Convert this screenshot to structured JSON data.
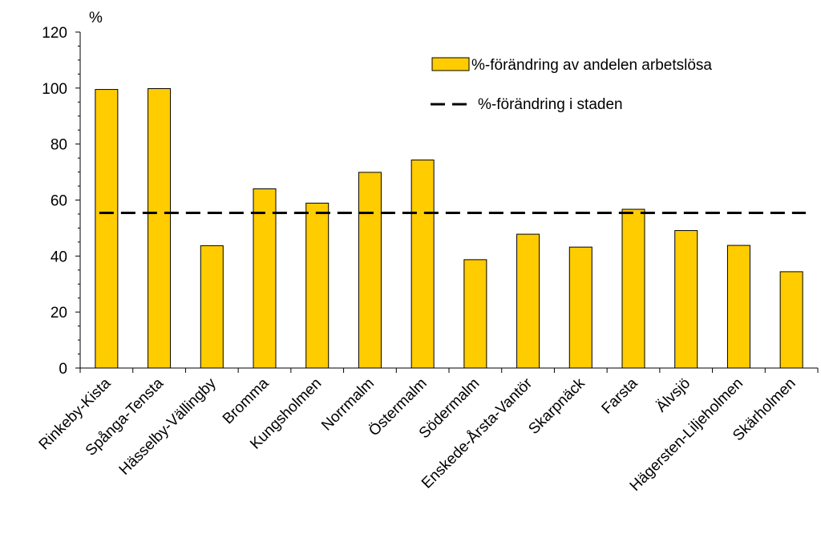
{
  "chart_data": {
    "type": "bar",
    "ylabel": "%",
    "ylim": [
      0,
      120
    ],
    "yticks": [
      0,
      20,
      40,
      60,
      80,
      100,
      120
    ],
    "grid": false,
    "legend_position": "top-right",
    "categories": [
      "Rinkeby-Kista",
      "Spånga-Tensta",
      "Hässelby-Vällingby",
      "Bromma",
      "Kungsholmen",
      "Norrmalm",
      "Östermalm",
      "Södermalm",
      "Enskede-Årsta-Vantör",
      "Skarpnäck",
      "Farsta",
      "Älvsjö",
      "Hägersten-Liljeholmen",
      "Skärholmen"
    ],
    "series": [
      {
        "name": "%-förändring av andelen arbetslösa",
        "kind": "bar",
        "color": "#FFCC00",
        "values": [
          99.5,
          99.8,
          43.7,
          64.0,
          58.9,
          69.9,
          74.3,
          38.7,
          47.8,
          43.2,
          56.7,
          49.1,
          43.8,
          34.4
        ]
      },
      {
        "name": "%-förändring i staden",
        "kind": "hline-dashed",
        "color": "#000000",
        "value": 55.4
      }
    ]
  }
}
